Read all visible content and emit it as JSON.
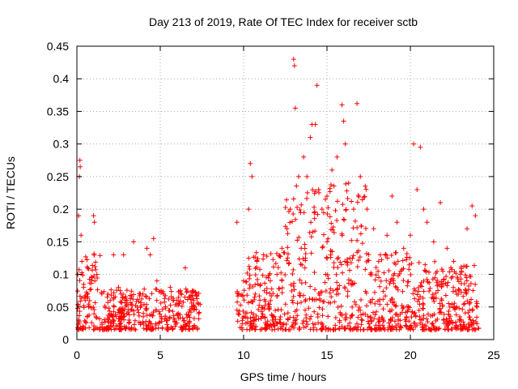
{
  "chart_data": {
    "type": "scatter",
    "title": "Day 213 of 2019, Rate Of TEC Index for receiver sctb",
    "xlabel": "GPS time / hours",
    "ylabel": "ROTI / TECUs",
    "xlim": [
      0,
      25
    ],
    "ylim": [
      0,
      0.45
    ],
    "xticks": [
      0,
      5,
      10,
      15,
      20,
      25
    ],
    "yticks": [
      0,
      0.05,
      0.1,
      0.15,
      0.2,
      0.25,
      0.3,
      0.35,
      0.4,
      0.45
    ],
    "xtick_labels": [
      "0",
      "5",
      "10",
      "15",
      "20",
      "25"
    ],
    "ytick_labels": [
      "0",
      "0.05",
      "0.1",
      "0.15",
      "0.2",
      "0.25",
      "0.3",
      "0.35",
      "0.4",
      "0.45"
    ],
    "grid": true,
    "marker": "+",
    "marker_color": "#ff0000",
    "data_gap_hours": [
      7.4,
      9.6
    ],
    "series": [
      {
        "name": "ROTI",
        "points": [
          [
            0.05,
            0.1
          ],
          [
            0.1,
            0.19
          ],
          [
            0.15,
            0.25
          ],
          [
            0.18,
            0.275
          ],
          [
            0.2,
            0.265
          ],
          [
            0.25,
            0.16
          ],
          [
            0.3,
            0.12
          ],
          [
            0.4,
            0.08
          ],
          [
            0.5,
            0.06
          ],
          [
            0.7,
            0.05
          ],
          [
            1.0,
            0.19
          ],
          [
            1.05,
            0.18
          ],
          [
            1.2,
            0.1
          ],
          [
            1.5,
            0.07
          ],
          [
            2.0,
            0.06
          ],
          [
            2.2,
            0.13
          ],
          [
            2.5,
            0.08
          ],
          [
            2.8,
            0.13
          ],
          [
            3.0,
            0.06
          ],
          [
            3.4,
            0.15
          ],
          [
            3.8,
            0.07
          ],
          [
            4.2,
            0.14
          ],
          [
            4.4,
            0.13
          ],
          [
            4.6,
            0.155
          ],
          [
            4.8,
            0.09
          ],
          [
            5.2,
            0.07
          ],
          [
            5.6,
            0.08
          ],
          [
            6.0,
            0.06
          ],
          [
            6.5,
            0.11
          ],
          [
            7.0,
            0.06
          ],
          [
            7.3,
            0.04
          ],
          [
            9.6,
            0.18
          ],
          [
            9.7,
            0.07
          ],
          [
            10.0,
            0.09
          ],
          [
            10.3,
            0.2
          ],
          [
            10.4,
            0.27
          ],
          [
            10.5,
            0.25
          ],
          [
            10.8,
            0.12
          ],
          [
            11.2,
            0.13
          ],
          [
            11.6,
            0.09
          ],
          [
            12.0,
            0.1
          ],
          [
            12.3,
            0.14
          ],
          [
            12.6,
            0.17
          ],
          [
            12.8,
            0.2
          ],
          [
            13.0,
            0.43
          ],
          [
            13.05,
            0.42
          ],
          [
            13.1,
            0.355
          ],
          [
            13.3,
            0.25
          ],
          [
            13.6,
            0.28
          ],
          [
            13.8,
            0.25
          ],
          [
            14.0,
            0.31
          ],
          [
            14.1,
            0.33
          ],
          [
            14.3,
            0.33
          ],
          [
            14.4,
            0.39
          ],
          [
            14.5,
            0.23
          ],
          [
            14.7,
            0.2
          ],
          [
            15.0,
            0.22
          ],
          [
            15.3,
            0.26
          ],
          [
            15.6,
            0.28
          ],
          [
            15.9,
            0.36
          ],
          [
            16.0,
            0.335
          ],
          [
            16.1,
            0.3
          ],
          [
            16.3,
            0.24
          ],
          [
            16.6,
            0.2
          ],
          [
            16.8,
            0.362
          ],
          [
            17.0,
            0.25
          ],
          [
            17.4,
            0.2
          ],
          [
            17.8,
            0.17
          ],
          [
            18.2,
            0.13
          ],
          [
            18.6,
            0.16
          ],
          [
            18.9,
            0.22
          ],
          [
            19.2,
            0.18
          ],
          [
            19.6,
            0.14
          ],
          [
            20.0,
            0.16
          ],
          [
            20.2,
            0.3
          ],
          [
            20.4,
            0.23
          ],
          [
            20.6,
            0.295
          ],
          [
            20.8,
            0.2
          ],
          [
            21.0,
            0.18
          ],
          [
            21.4,
            0.15
          ],
          [
            21.8,
            0.21
          ],
          [
            22.2,
            0.14
          ],
          [
            22.6,
            0.12
          ],
          [
            23.0,
            0.1
          ],
          [
            23.4,
            0.17
          ],
          [
            23.7,
            0.205
          ],
          [
            23.9,
            0.19
          ],
          [
            24.0,
            0.05
          ]
        ]
      }
    ]
  }
}
